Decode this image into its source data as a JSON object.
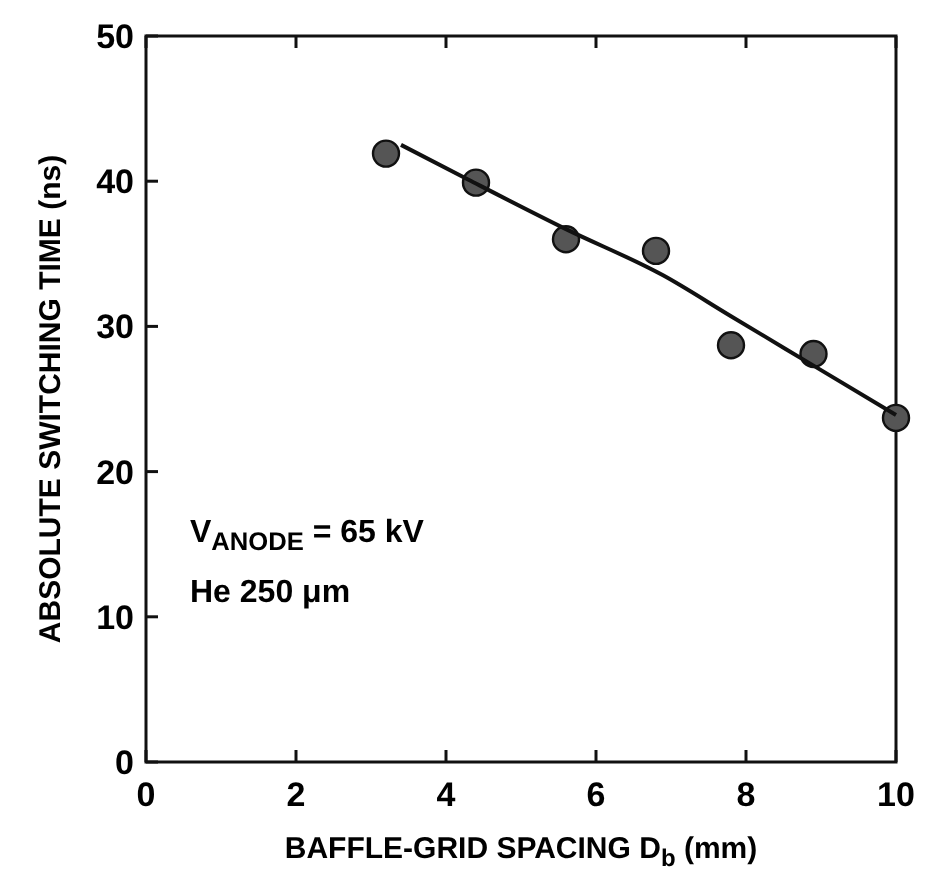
{
  "chart_data": {
    "type": "scatter",
    "xlabel": "BAFFLE-GRID SPACING D$_{b}$ (mm)",
    "ylabel": "ABSOLUTE SWITCHING TIME (ns)",
    "xlim": [
      0,
      10
    ],
    "ylim": [
      0,
      50
    ],
    "xticks": [
      0,
      2,
      4,
      6,
      8,
      10
    ],
    "yticks": [
      0,
      10,
      20,
      30,
      40,
      50
    ],
    "grid": false,
    "series": [
      {
        "color": "#555555",
        "marker": "circle",
        "x": [
          3.2,
          4.4,
          5.6,
          6.8,
          7.8,
          8.9,
          10.0
        ],
        "values": [
          41.9,
          39.9,
          36.0,
          35.2,
          28.7,
          28.1,
          23.7
        ]
      },
      {
        "type": "line",
        "color": "#111111",
        "marker": "none",
        "line_style": "solid",
        "x": [
          3.4,
          4.3,
          5.6,
          6.9,
          7.8,
          8.9,
          10.0
        ],
        "values": [
          42.5,
          40.1,
          36.7,
          33.5,
          30.7,
          27.3,
          23.9
        ]
      }
    ],
    "annotations": [
      "V$_{ANODE}$ = 65 kV",
      "He 250 μm"
    ]
  }
}
